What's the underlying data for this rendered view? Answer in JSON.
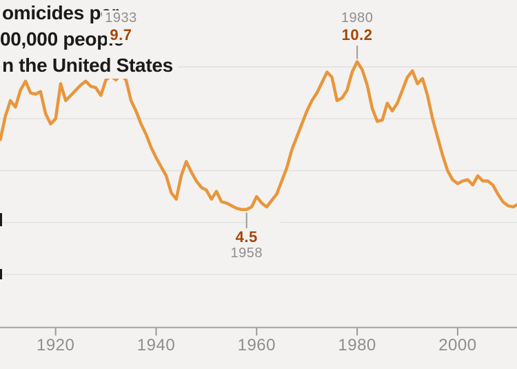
{
  "chart_data": {
    "type": "line",
    "title_lines": [
      "omicides per",
      "00,000 people",
      "n the United States"
    ],
    "grid": "horizontal",
    "legend": "none",
    "x_axis": {
      "tick_labels": [
        "1920",
        "1940",
        "1960",
        "1980",
        "2000"
      ],
      "tick_years": [
        1920,
        1940,
        1960,
        1980,
        2000
      ]
    },
    "y_axis": {
      "gridline_values": [
        2,
        4,
        6,
        8,
        10
      ],
      "baseline_value": 0,
      "ylim": [
        0,
        10.8
      ]
    },
    "x_range_years": [
      1909,
      2012
    ],
    "series": [
      {
        "name": "homicides-per-100000",
        "x": [
          1909,
          1910,
          1911,
          1912,
          1913,
          1914,
          1915,
          1916,
          1917,
          1918,
          1919,
          1920,
          1921,
          1922,
          1923,
          1924,
          1925,
          1926,
          1927,
          1928,
          1929,
          1930,
          1931,
          1932,
          1933,
          1934,
          1935,
          1936,
          1937,
          1938,
          1939,
          1940,
          1941,
          1942,
          1943,
          1944,
          1945,
          1946,
          1947,
          1948,
          1949,
          1950,
          1951,
          1952,
          1953,
          1954,
          1955,
          1956,
          1957,
          1958,
          1959,
          1960,
          1961,
          1962,
          1963,
          1964,
          1965,
          1966,
          1967,
          1968,
          1969,
          1970,
          1971,
          1972,
          1973,
          1974,
          1975,
          1976,
          1977,
          1978,
          1979,
          1980,
          1981,
          1982,
          1983,
          1984,
          1985,
          1986,
          1987,
          1988,
          1989,
          1990,
          1991,
          1992,
          1993,
          1994,
          1995,
          1996,
          1997,
          1998,
          1999,
          2000,
          2001,
          2002,
          2003,
          2004,
          2005,
          2006,
          2007,
          2008,
          2009,
          2010,
          2011,
          2012
        ],
        "values": [
          7.2,
          8.1,
          8.7,
          8.45,
          9.1,
          9.45,
          9.0,
          8.95,
          9.05,
          8.2,
          7.8,
          8.0,
          9.35,
          8.7,
          8.9,
          9.1,
          9.3,
          9.45,
          9.25,
          9.2,
          8.9,
          9.5,
          9.65,
          9.5,
          9.7,
          9.5,
          8.7,
          8.3,
          7.8,
          7.4,
          6.9,
          6.5,
          6.15,
          5.8,
          5.15,
          4.9,
          5.8,
          6.35,
          5.95,
          5.6,
          5.35,
          5.25,
          4.9,
          5.2,
          4.8,
          4.75,
          4.65,
          4.55,
          4.5,
          4.5,
          4.6,
          5.0,
          4.75,
          4.6,
          4.85,
          5.1,
          5.6,
          6.1,
          6.8,
          7.3,
          7.8,
          8.3,
          8.7,
          9.0,
          9.4,
          9.8,
          9.6,
          8.7,
          8.8,
          9.1,
          9.8,
          10.2,
          9.9,
          9.3,
          8.4,
          7.9,
          7.95,
          8.6,
          8.3,
          8.6,
          9.1,
          9.6,
          9.85,
          9.35,
          9.55,
          8.9,
          8.0,
          7.3,
          6.6,
          6.0,
          5.65,
          5.5,
          5.6,
          5.65,
          5.45,
          5.8,
          5.6,
          5.6,
          5.45,
          5.1,
          4.8,
          4.65,
          4.6,
          4.7
        ]
      }
    ],
    "annotations": [
      {
        "year_label": "1933",
        "value_label": "9.7",
        "year": 1933,
        "value": 9.7,
        "placement": "above"
      },
      {
        "year_label": "1980",
        "value_label": "10.2",
        "year": 1980,
        "value": 10.2,
        "placement": "above"
      },
      {
        "year_label": "1958",
        "value_label": "4.5",
        "year": 1958,
        "value": 4.5,
        "placement": "below"
      }
    ]
  },
  "colors": {
    "background": "#f3f2f0",
    "line": "#e8963c",
    "gridline": "#e0dfdd",
    "axis_line": "#a9a8a5",
    "tick": "#999996",
    "annotation_tick": "#9c9c9a",
    "annotation_value": "#a3450a",
    "annotation_year": "#8e8e8c",
    "axis_label": "#8e8e8c",
    "title": "#1a1a1a"
  }
}
